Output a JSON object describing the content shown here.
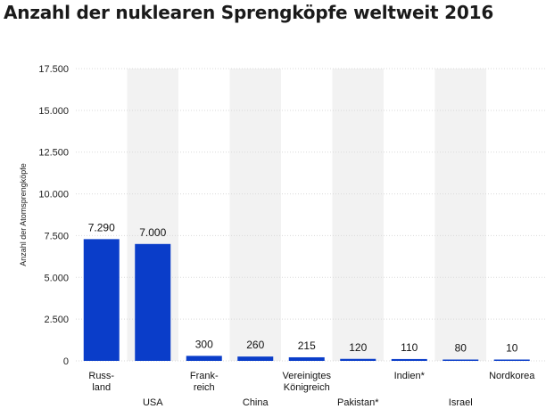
{
  "chart_data": {
    "type": "bar",
    "title": "Anzahl der nuklearen Sprengköpfe weltweit 2016",
    "ylabel": "Anzahl der Atomsprengköpfe",
    "xlabel": "",
    "ylim": [
      0,
      17500
    ],
    "yticks": [
      0,
      2500,
      5000,
      7500,
      10000,
      12500,
      15000,
      17500
    ],
    "ytick_labels": [
      "0",
      "2.500",
      "5.000",
      "7.500",
      "10.000",
      "12.500",
      "15.000",
      "17.500"
    ],
    "grid": true,
    "categories": [
      {
        "lines": [
          "Russ-",
          "land"
        ],
        "row": 0
      },
      {
        "lines": [
          "USA"
        ],
        "row": 1
      },
      {
        "lines": [
          "Frank-",
          "reich"
        ],
        "row": 0
      },
      {
        "lines": [
          "China"
        ],
        "row": 1
      },
      {
        "lines": [
          "Vereinigtes",
          "Königreich"
        ],
        "row": 0
      },
      {
        "lines": [
          "Pakistan*"
        ],
        "row": 1
      },
      {
        "lines": [
          "Indien*"
        ],
        "row": 0
      },
      {
        "lines": [
          "Israel"
        ],
        "row": 1
      },
      {
        "lines": [
          "Nordkorea"
        ],
        "row": 0
      }
    ],
    "values": [
      7290,
      7000,
      300,
      260,
      215,
      120,
      110,
      80,
      10
    ],
    "value_labels": [
      "7.290",
      "7.000",
      "300",
      "260",
      "215",
      "120",
      "110",
      "80",
      "10"
    ],
    "bar_color": "#0a3dc9",
    "alt_band_color": "#f2f2f2",
    "grid_color": "#d9d9d9"
  }
}
